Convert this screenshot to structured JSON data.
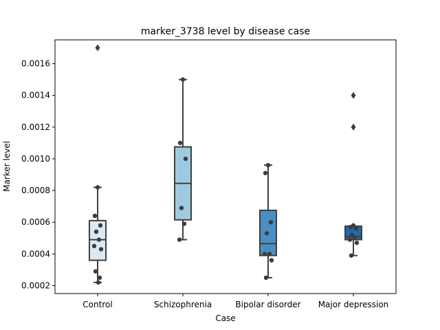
{
  "chart_data": {
    "type": "box",
    "title": "marker_3738 level by disease case",
    "xlabel": "Case",
    "ylabel": "Marker level",
    "categories": [
      "Control",
      "Schizophrenia",
      "Bipolar disorder",
      "Major depression"
    ],
    "ylim": [
      0.00015,
      0.00175
    ],
    "yticks": [
      0.0002,
      0.0004,
      0.0006,
      0.0008,
      0.001,
      0.0012,
      0.0014,
      0.0016
    ],
    "ytick_labels": [
      "0.0002",
      "0.0004",
      "0.0006",
      "0.0008",
      "0.0010",
      "0.0012",
      "0.0014",
      "0.0016"
    ],
    "grid": false,
    "boxes": [
      {
        "category": "Control",
        "color": "#dbe9f6",
        "whisker_low": 0.00022,
        "q1": 0.00036,
        "median": 0.00049,
        "q3": 0.00061,
        "whisker_high": 0.00082,
        "outliers": [
          0.0017
        ]
      },
      {
        "category": "Schizophrenia",
        "color": "#9ecae1",
        "whisker_low": 0.00049,
        "q1": 0.000615,
        "median": 0.000845,
        "q3": 0.001075,
        "whisker_high": 0.0015,
        "outliers": []
      },
      {
        "category": "Bipolar disorder",
        "color": "#4a8fc2",
        "whisker_low": 0.00025,
        "q1": 0.00039,
        "median": 0.000465,
        "q3": 0.000675,
        "whisker_high": 0.00096,
        "outliers": []
      },
      {
        "category": "Major depression",
        "color": "#2468a8",
        "whisker_low": 0.00039,
        "q1": 0.00049,
        "median": 0.00051,
        "q3": 0.000575,
        "whisker_high": 0.000575,
        "outliers": [
          0.0012,
          0.0014
        ]
      }
    ],
    "points": [
      {
        "category": "Control",
        "values": [
          0.00082,
          0.00064,
          0.00058,
          0.00054,
          0.00049,
          0.00045,
          0.00043,
          0.00029,
          0.00025,
          0.00022
        ]
      },
      {
        "category": "Schizophrenia",
        "values": [
          0.0015,
          0.0011,
          0.001,
          0.00069,
          0.00059,
          0.00049
        ]
      },
      {
        "category": "Bipolar disorder",
        "values": [
          0.00096,
          0.00091,
          0.0006,
          0.00053,
          0.0004,
          0.0004,
          0.00036,
          0.00025
        ]
      },
      {
        "category": "Major depression",
        "values": [
          0.00058,
          0.00057,
          0.00056,
          0.00052,
          0.0005,
          0.00049,
          0.00047,
          0.00039
        ]
      }
    ]
  }
}
